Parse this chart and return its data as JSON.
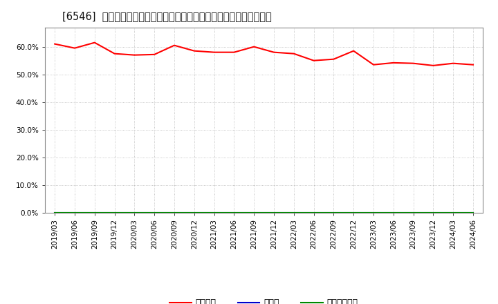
{
  "title": "[6546]  自己資本、のれん、繰延税金資産の総資産に対する比率の推移",
  "x_labels": [
    "2019/03",
    "2019/06",
    "2019/09",
    "2019/12",
    "2020/03",
    "2020/06",
    "2020/09",
    "2020/12",
    "2021/03",
    "2021/06",
    "2021/09",
    "2021/12",
    "2022/03",
    "2022/06",
    "2022/09",
    "2022/12",
    "2023/03",
    "2023/06",
    "2023/09",
    "2023/12",
    "2024/03",
    "2024/06"
  ],
  "equity_ratio": [
    61.0,
    59.5,
    61.5,
    57.5,
    57.0,
    57.2,
    60.5,
    58.5,
    58.0,
    58.0,
    60.0,
    58.0,
    57.5,
    55.0,
    55.5,
    58.5,
    53.5,
    54.2,
    54.0,
    53.2,
    54.0,
    53.5
  ],
  "goodwill_ratio": [
    0.0,
    0.0,
    0.0,
    0.0,
    0.0,
    0.0,
    0.0,
    0.0,
    0.0,
    0.0,
    0.0,
    0.0,
    0.0,
    0.0,
    0.0,
    0.0,
    0.0,
    0.0,
    0.0,
    0.0,
    0.0,
    0.0
  ],
  "deferred_tax_ratio": [
    0.0,
    0.0,
    0.0,
    0.0,
    0.0,
    0.0,
    0.0,
    0.0,
    0.0,
    0.0,
    0.0,
    0.0,
    0.0,
    0.0,
    0.0,
    0.0,
    0.0,
    0.0,
    0.0,
    0.0,
    0.0,
    0.0
  ],
  "equity_color": "#ff0000",
  "goodwill_color": "#0000cc",
  "deferred_tax_color": "#008800",
  "equity_label": "自己資本",
  "goodwill_label": "のれん",
  "deferred_tax_label": "繰延税金資産",
  "ylim": [
    0,
    67
  ],
  "yticks": [
    0,
    10,
    20,
    30,
    40,
    50,
    60
  ],
  "background_color": "#ffffff",
  "plot_bg_color": "#ffffff",
  "grid_color": "#999999",
  "title_fontsize": 10.5,
  "tick_fontsize": 7.5,
  "legend_fontsize": 9
}
